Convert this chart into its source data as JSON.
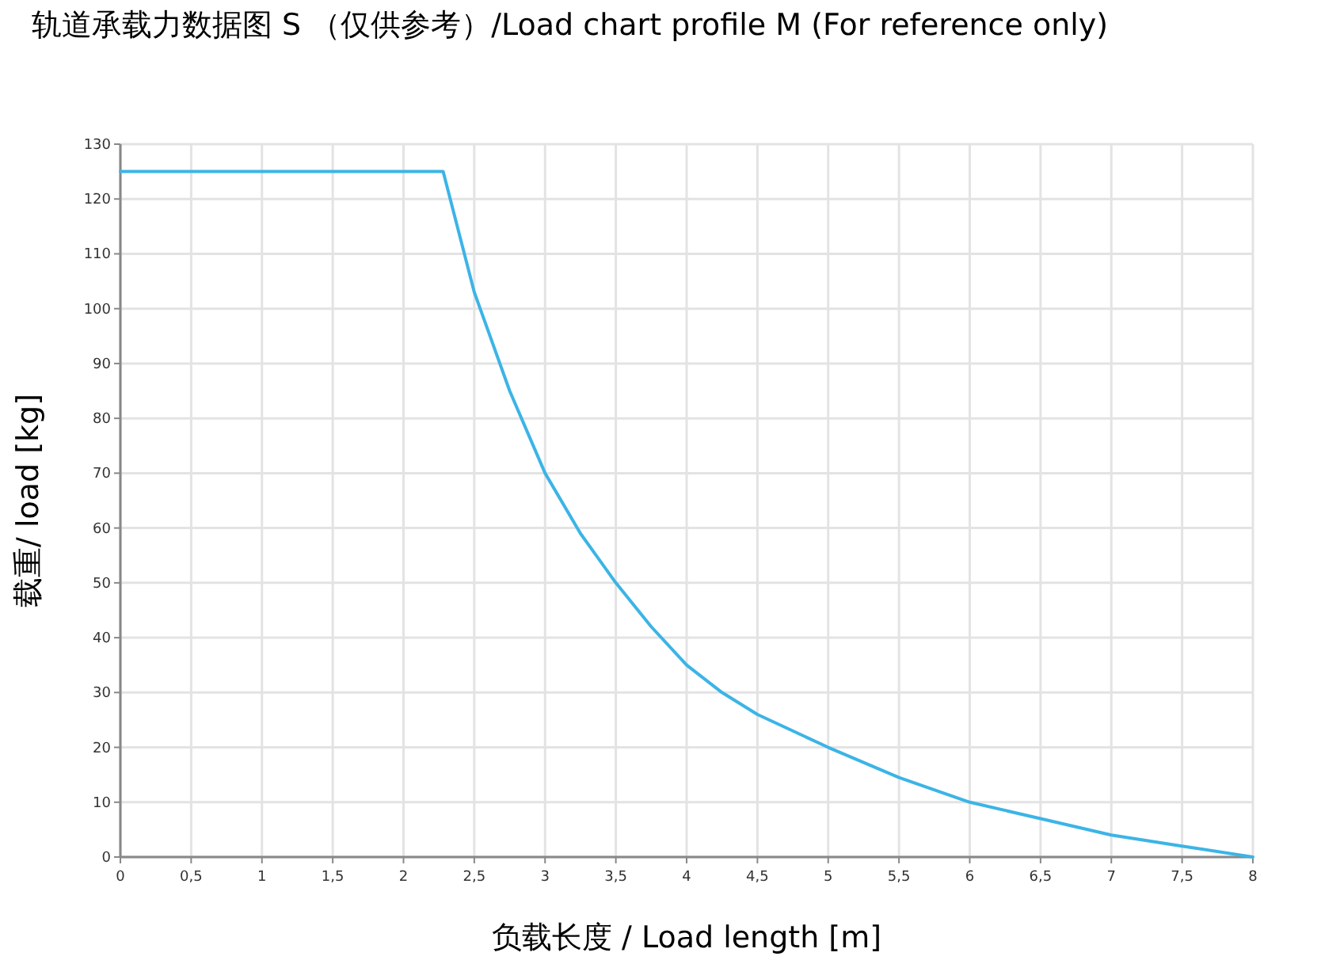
{
  "chart_data": {
    "type": "line",
    "title": "轨道承载力数据图 S （仅供参考）/Load chart profile M (For reference only)",
    "xlabel": "负载长度 / Load length [m]",
    "ylabel": "载重/ load [kg]",
    "x": [
      0,
      2.28,
      2.5,
      2.75,
      3,
      3.25,
      3.5,
      3.75,
      4,
      4.25,
      4.5,
      4.75,
      5,
      5.5,
      6,
      6.5,
      7,
      7.5,
      8
    ],
    "series": [
      {
        "color": "#3cb4e6",
        "values": [
          125,
          125,
          103,
          85,
          70,
          59,
          50,
          42,
          35,
          30,
          26,
          23,
          20,
          14.5,
          10,
          7,
          4,
          2,
          0
        ]
      }
    ],
    "xlim": [
      0,
      8
    ],
    "ylim": [
      0,
      130
    ],
    "xticks": [
      0,
      {
        "value": 0.5,
        "label": "0,5"
      },
      1,
      {
        "value": 1.5,
        "label": "1,5"
      },
      2,
      {
        "value": 2.5,
        "label": "2,5"
      },
      3,
      {
        "value": 3.5,
        "label": "3,5"
      },
      4,
      {
        "value": 4.5,
        "label": "4,5"
      },
      5,
      {
        "value": 5.5,
        "label": "5,5"
      },
      6,
      {
        "value": 6.5,
        "label": "6,5"
      },
      7,
      {
        "value": 7.5,
        "label": "7,5"
      },
      8
    ],
    "yticks": [
      0,
      10,
      20,
      30,
      40,
      50,
      60,
      70,
      80,
      90,
      100,
      110,
      120,
      130
    ],
    "grid": true
  }
}
